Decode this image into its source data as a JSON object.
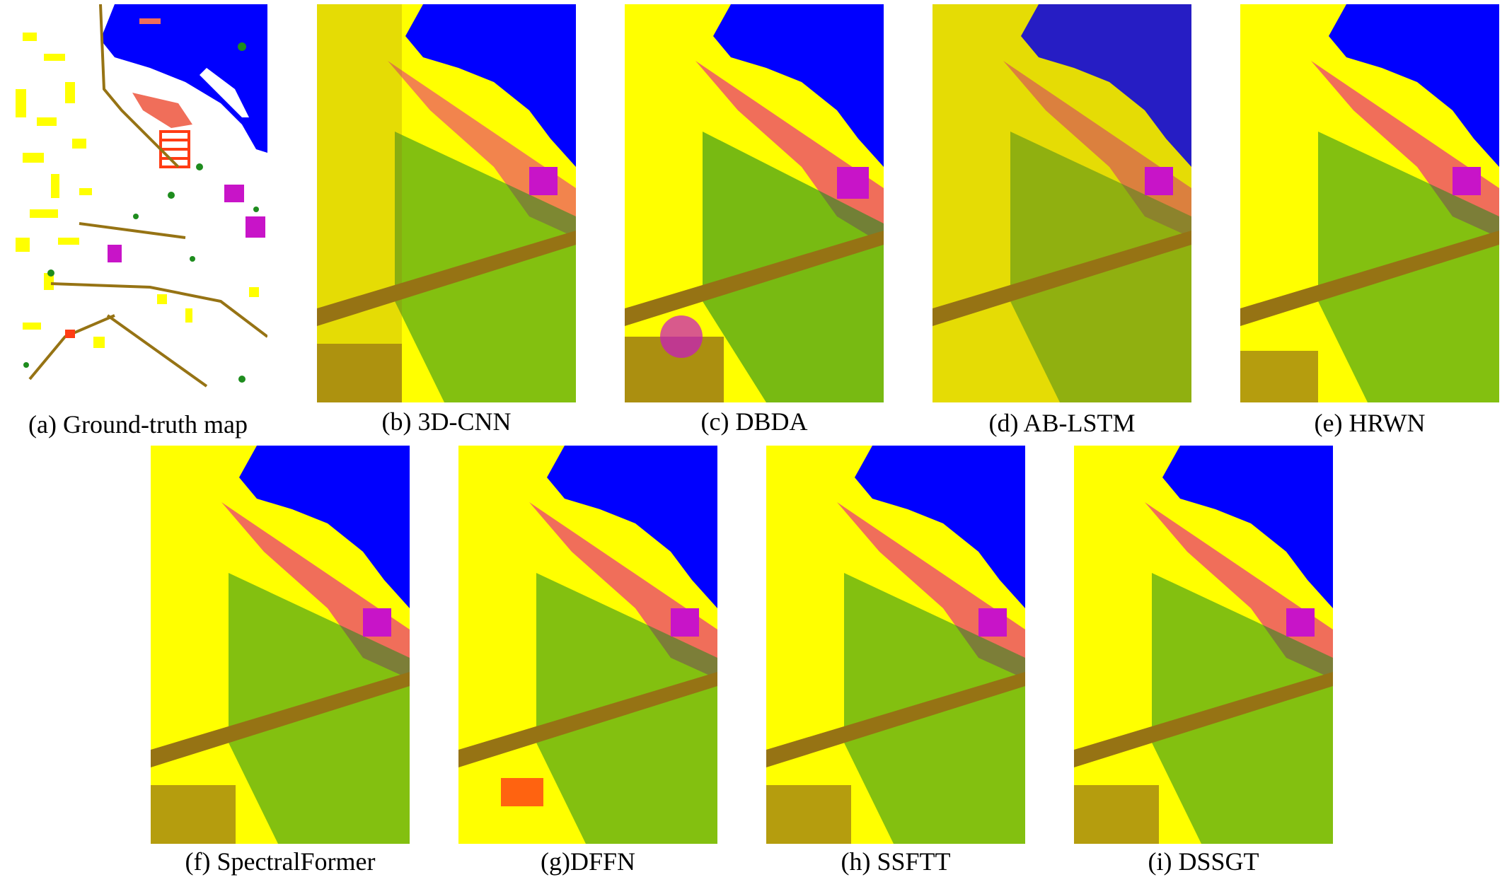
{
  "figure": {
    "panels": [
      {
        "id": "a",
        "caption": "(a) Ground-truth map"
      },
      {
        "id": "b",
        "caption": "(b) 3D-CNN"
      },
      {
        "id": "c",
        "caption": "(c) DBDA"
      },
      {
        "id": "d",
        "caption": "(d) AB-LSTM"
      },
      {
        "id": "e",
        "caption": "(e) HRWN"
      },
      {
        "id": "f",
        "caption": "(f) SpectralFormer"
      },
      {
        "id": "g",
        "caption": "(g)DFFN"
      },
      {
        "id": "h",
        "caption": "(h) SSFTT"
      },
      {
        "id": "i",
        "caption": "(i) DSSGT"
      }
    ],
    "class_colors": {
      "water": "#0000ff",
      "building_yellow": "#ffff00",
      "vegetation": "#1e8c1e",
      "bright_green": "#32e632",
      "soil_salmon": "#f06e5a",
      "red_orange": "#ff3c14",
      "magenta": "#c814c8",
      "brown": "#967314",
      "white": "#ffffff"
    }
  }
}
